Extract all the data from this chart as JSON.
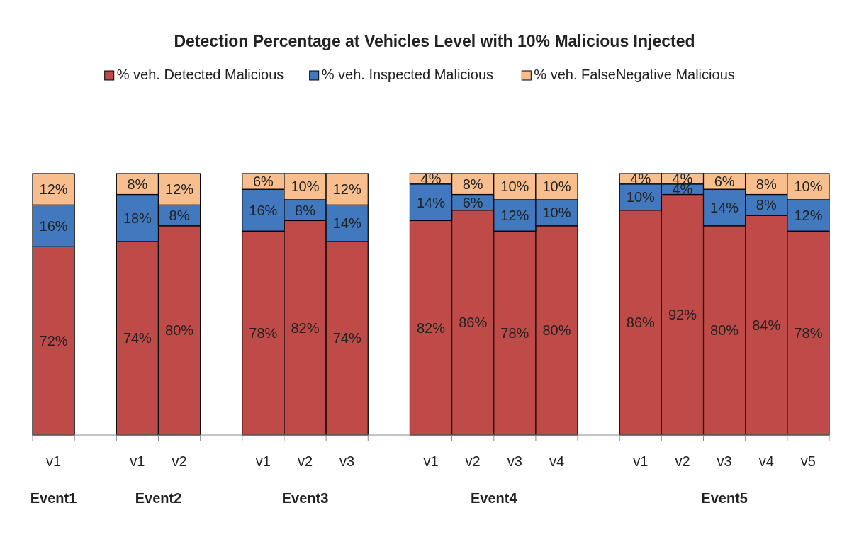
{
  "chart_data": {
    "type": "bar",
    "title": "Detection Percentage at Vehicles Level with 10% Malicious Injected",
    "stacked": true,
    "legend": "top",
    "ylim": [
      0,
      100
    ],
    "categories": [
      "v1",
      null,
      "v1",
      "v2",
      null,
      "v1",
      "v2",
      "v3",
      null,
      "v1",
      "v2",
      "v3",
      "v4",
      null,
      "v1",
      "v2",
      "v3",
      "v4",
      "v5"
    ],
    "annotations": [
      "Event1",
      "Event2",
      "Event3",
      "Event4",
      "Event5"
    ],
    "series": [
      {
        "name": "% veh. Detected Malicious",
        "color": "#be4b48",
        "values": [
          72,
          null,
          74,
          80,
          null,
          78,
          82,
          74,
          null,
          82,
          86,
          78,
          80,
          null,
          86,
          92,
          80,
          84,
          78
        ],
        "value_labels": [
          "72%",
          null,
          "74%",
          "80%",
          null,
          "78%",
          "82%",
          "74%",
          null,
          "82%",
          "86%",
          "78%",
          "80%",
          null,
          "86%",
          "92%",
          "80%",
          "84%",
          "78%"
        ]
      },
      {
        "name": "% veh. Inspected Malicious",
        "color": "#4178be",
        "values": [
          16,
          null,
          18,
          8,
          null,
          16,
          8,
          14,
          null,
          14,
          6,
          12,
          10,
          null,
          10,
          4,
          14,
          8,
          12
        ],
        "value_labels": [
          "16%",
          null,
          "18%",
          "8%",
          null,
          "16%",
          "8%",
          "14%",
          null,
          "14%",
          "6%",
          "12%",
          "10%",
          null,
          "10%",
          "4%",
          "14%",
          "8%",
          "12%"
        ]
      },
      {
        "name": "% veh. FalseNegative Malicious",
        "color": "#f9be8e",
        "values": [
          12,
          null,
          8,
          12,
          null,
          6,
          10,
          12,
          null,
          4,
          8,
          10,
          10,
          null,
          4,
          4,
          6,
          8,
          10
        ],
        "value_labels": [
          "12%",
          null,
          "8%",
          "12%",
          null,
          "6%",
          "10%",
          "12%",
          null,
          "4%",
          "8%",
          "10%",
          "10%",
          null,
          "4%",
          "4%",
          "6%",
          "8%",
          "10%"
        ]
      }
    ]
  }
}
